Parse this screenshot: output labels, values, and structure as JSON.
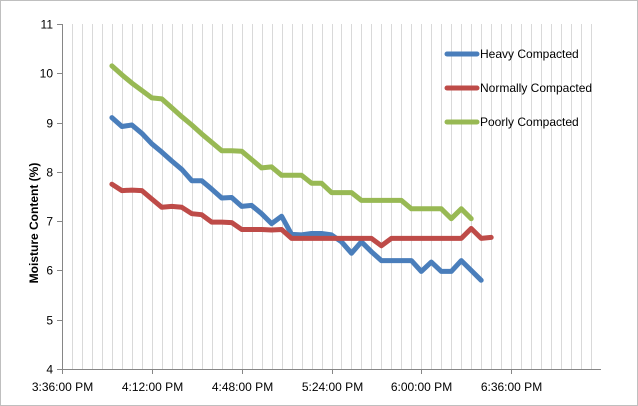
{
  "chart_data": {
    "type": "line",
    "title": "",
    "xlabel": "",
    "ylabel": "Moisture Content (%)",
    "x_tick_labels": [
      "3:36:00 PM",
      "4:12:00 PM",
      "4:48:00 PM",
      "5:24:00 PM",
      "6:00:00 PM",
      "6:36:00 PM"
    ],
    "x_tick_times": [
      "15:36",
      "16:12",
      "16:48",
      "17:24",
      "18:00",
      "18:36"
    ],
    "xlim": [
      "15:36",
      "19:12"
    ],
    "ylim": [
      4,
      11
    ],
    "y_ticks": [
      4,
      5,
      6,
      7,
      8,
      9,
      10,
      11
    ],
    "grid": "vertical",
    "legend_position": "top-right",
    "x": [
      "15:56",
      "16:00",
      "16:04",
      "16:08",
      "16:12",
      "16:16",
      "16:20",
      "16:24",
      "16:28",
      "16:32",
      "16:36",
      "16:40",
      "16:44",
      "16:48",
      "16:52",
      "16:56",
      "17:00",
      "17:04",
      "17:08",
      "17:12",
      "17:16",
      "17:20",
      "17:24",
      "17:28",
      "17:32",
      "17:36",
      "17:40",
      "17:44",
      "17:48",
      "17:52",
      "17:56",
      "18:00",
      "18:04",
      "18:08",
      "18:12",
      "18:16",
      "18:20",
      "18:24",
      "18:28",
      "18:32",
      "18:36",
      "18:40",
      "18:44",
      "18:48",
      "18:52",
      "18:56"
    ],
    "series": [
      {
        "name": "Heavy Compacted",
        "color": "#4a7ebb",
        "values": [
          9.1,
          8.92,
          8.95,
          8.78,
          8.57,
          8.4,
          8.22,
          8.05,
          7.82,
          7.82,
          7.65,
          7.47,
          7.48,
          7.3,
          7.32,
          7.15,
          6.95,
          7.1,
          6.73,
          6.72,
          6.75,
          6.75,
          6.72,
          6.58,
          6.35,
          6.58,
          6.38,
          6.2,
          6.2,
          6.2,
          6.2,
          5.98,
          6.17,
          5.98,
          5.98,
          6.2,
          6.0,
          5.8,
          null,
          null,
          null,
          null,
          null,
          null,
          null,
          null
        ]
      },
      {
        "name": "Normally Compacted",
        "color": "#be4b48",
        "values": [
          7.75,
          7.62,
          7.63,
          7.62,
          7.45,
          7.28,
          7.3,
          7.28,
          7.15,
          7.13,
          6.98,
          6.98,
          6.97,
          6.83,
          6.83,
          6.83,
          6.82,
          6.83,
          6.65,
          6.65,
          6.65,
          6.65,
          6.65,
          6.65,
          6.65,
          6.65,
          6.65,
          6.5,
          6.65,
          6.65,
          6.65,
          6.65,
          6.65,
          6.65,
          6.65,
          6.65,
          6.85,
          6.65,
          6.67,
          null,
          null,
          null,
          null,
          null,
          null,
          null
        ]
      },
      {
        "name": "Poorly Compacted",
        "color": "#98b954",
        "values": [
          10.15,
          9.97,
          9.8,
          9.65,
          9.5,
          9.48,
          9.3,
          9.12,
          8.95,
          8.77,
          8.6,
          8.43,
          8.43,
          8.42,
          8.25,
          8.08,
          8.1,
          7.93,
          7.93,
          7.93,
          7.77,
          7.77,
          7.58,
          7.58,
          7.58,
          7.42,
          7.42,
          7.42,
          7.42,
          7.42,
          7.25,
          7.25,
          7.25,
          7.25,
          7.05,
          7.25,
          7.05,
          null,
          null,
          null,
          null,
          null,
          null,
          null,
          null,
          null
        ]
      }
    ]
  }
}
